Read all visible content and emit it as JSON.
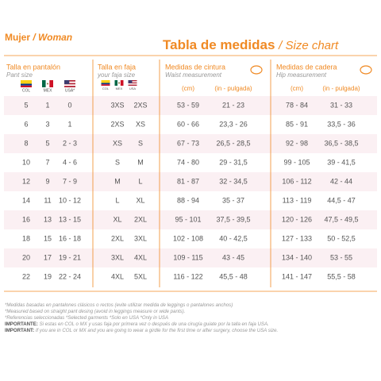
{
  "header": {
    "left_title": "Mujer",
    "left_subtitle": "/ Woman",
    "title": "Tabla de medidas",
    "subtitle": "/ Size chart"
  },
  "groups": [
    {
      "title": "Talla en pantalón",
      "subtitle": "Pant size",
      "flags": [
        "COL",
        "MEX",
        "USA*"
      ]
    },
    {
      "title": "Talla en faja",
      "subtitle": "your faja size",
      "flags": [
        "COL",
        "MEX",
        "USA"
      ]
    },
    {
      "title": "Medidas de cintura",
      "subtitle": "Waist measurement",
      "columns": [
        "(cm)",
        "(in - pulgada)"
      ]
    },
    {
      "title": "Medidas de cadera",
      "subtitle": "Hip measurement",
      "columns": [
        "(cm)",
        "(in - pulgada)"
      ]
    }
  ],
  "table": {
    "rows": [
      [
        "5",
        "1",
        "0",
        "3XS",
        "2XS",
        "53 - 59",
        "21 - 23",
        "78 - 84",
        "31 - 33"
      ],
      [
        "6",
        "3",
        "1",
        "2XS",
        "XS",
        "60 - 66",
        "23,3 - 26",
        "85 - 91",
        "33,5 - 36"
      ],
      [
        "8",
        "5",
        "2 - 3",
        "XS",
        "S",
        "67 - 73",
        "26,5 - 28,5",
        "92 - 98",
        "36,5 - 38,5"
      ],
      [
        "10",
        "7",
        "4 - 6",
        "S",
        "M",
        "74 - 80",
        "29 - 31,5",
        "99 - 105",
        "39 - 41,5"
      ],
      [
        "12",
        "9",
        "7 - 9",
        "M",
        "L",
        "81 - 87",
        "32 - 34,5",
        "106 - 112",
        "42 - 44"
      ],
      [
        "14",
        "11",
        "10 - 12",
        "L",
        "XL",
        "88 - 94",
        "35 - 37",
        "113 - 119",
        "44,5 - 47"
      ],
      [
        "16",
        "13",
        "13 - 15",
        "XL",
        "2XL",
        "95 - 101",
        "37,5 - 39,5",
        "120 - 126",
        "47,5 - 49,5"
      ],
      [
        "18",
        "15",
        "16 - 18",
        "2XL",
        "3XL",
        "102 - 108",
        "40 - 42,5",
        "127 - 133",
        "50 - 52,5"
      ],
      [
        "20",
        "17",
        "19 - 21",
        "3XL",
        "4XL",
        "109 - 115",
        "43 - 45",
        "134 - 140",
        "53 - 55"
      ],
      [
        "22",
        "19",
        "22 - 24",
        "4XL",
        "5XL",
        "116 - 122",
        "45,5 - 48",
        "141 - 147",
        "55,5 - 58"
      ]
    ]
  },
  "notes": [
    {
      "text": "*Medidas basadas en pantalones clásicos o rectos (evite utilizar medida de leggings o pantalones anchos)"
    },
    {
      "text": "*Measured based on straight pant desing (avoid in leggings measure or wide pants)."
    },
    {
      "text": "*Referencias seleccionadas *Selected garments *Solo en USA *Only in USA"
    },
    {
      "label": "IMPORTANTE:",
      "text": "Si estas en COL o MX y usas faja por primera vez o después de una cirugía guiate por la talla en faja USA."
    },
    {
      "label": "IMPORTANT:",
      "text": "If you are in COL or MX and you are going to wear a girdle for the first time or after surgery, choose the USA size."
    }
  ]
}
